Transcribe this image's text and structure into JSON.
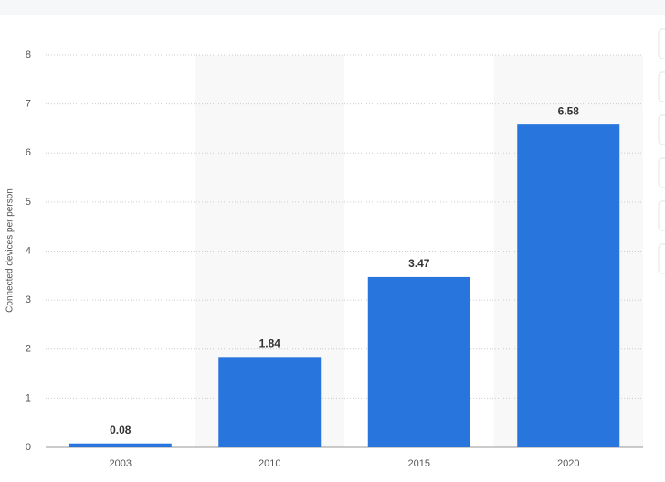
{
  "chart_data": {
    "type": "bar",
    "y_label": "Connected devices per person",
    "categories": [
      "2003",
      "2010",
      "2015",
      "2020"
    ],
    "values": [
      0.08,
      1.84,
      3.47,
      6.58
    ],
    "color": "#2876dd",
    "ylim": [
      0,
      8
    ],
    "yticks": [
      0,
      1,
      2,
      3,
      4,
      5,
      6,
      7,
      8
    ],
    "grid": true,
    "data_labels": true
  }
}
